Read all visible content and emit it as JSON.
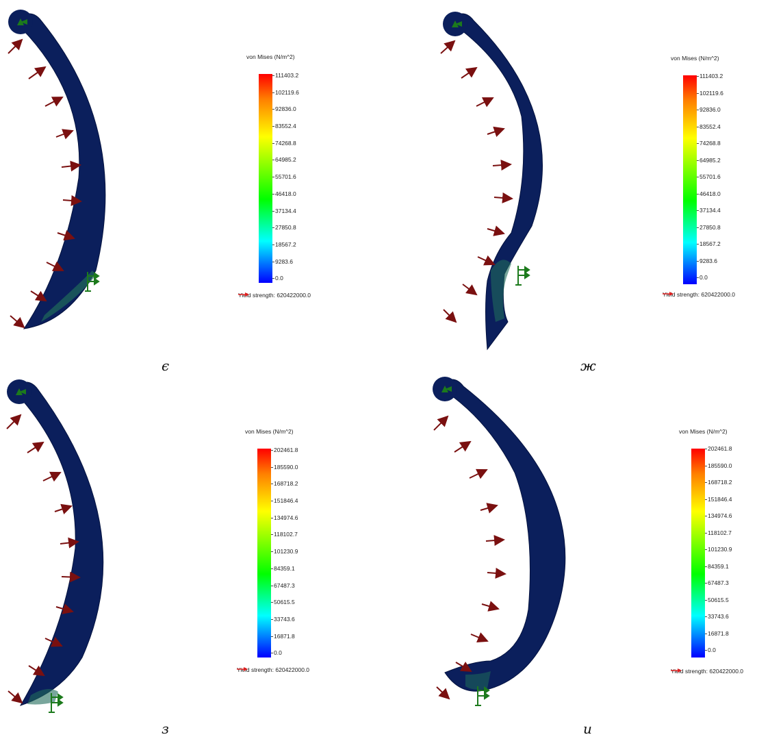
{
  "colors": {
    "body": "#0b1f5c",
    "body_edge": "#04123f",
    "highlight": "#1f6a5a",
    "pressure_arrow": "#7a1010",
    "fixture": "#1c7a1c",
    "yield_arrow": "#e02020"
  },
  "panels": [
    {
      "caption": "є",
      "legend": {
        "title": "von Mises (N/m^2)",
        "ticks": [
          "111403.2",
          "102119.6",
          "92836.0",
          "83552.4",
          "74268.8",
          "64985.2",
          "55701.6",
          "46418.0",
          "37134.4",
          "27850.8",
          "18567.2",
          "9283.6",
          "0.0"
        ],
        "yield": "Yield strength: 620422000.0"
      }
    },
    {
      "caption": "ж",
      "legend": {
        "title": "von Mises (N/m^2)",
        "ticks": [
          "111403.2",
          "102119.6",
          "92836.0",
          "83552.4",
          "74268.8",
          "64985.2",
          "55701.6",
          "46418.0",
          "37134.4",
          "27850.8",
          "18567.2",
          "9283.6",
          "0.0"
        ],
        "yield": "Yield strength: 620422000.0"
      }
    },
    {
      "caption": "з",
      "legend": {
        "title": "von Mises (N/m^2)",
        "ticks": [
          "202461.8",
          "185590.0",
          "168718.2",
          "151846.4",
          "134974.6",
          "118102.7",
          "101230.9",
          "84359.1",
          "67487.3",
          "50615.5",
          "33743.6",
          "16871.8",
          "0.0"
        ],
        "yield": "Yield strength: 620422000.0"
      }
    },
    {
      "caption": "и",
      "legend": {
        "title": "von Mises (N/m^2)",
        "ticks": [
          "202461.8",
          "185590.0",
          "168718.2",
          "151846.4",
          "134974.6",
          "118102.7",
          "101230.9",
          "84359.1",
          "67487.3",
          "50615.5",
          "33743.6",
          "16871.8",
          "0.0"
        ],
        "yield": "Yield strength: 620422000.0"
      }
    }
  ]
}
